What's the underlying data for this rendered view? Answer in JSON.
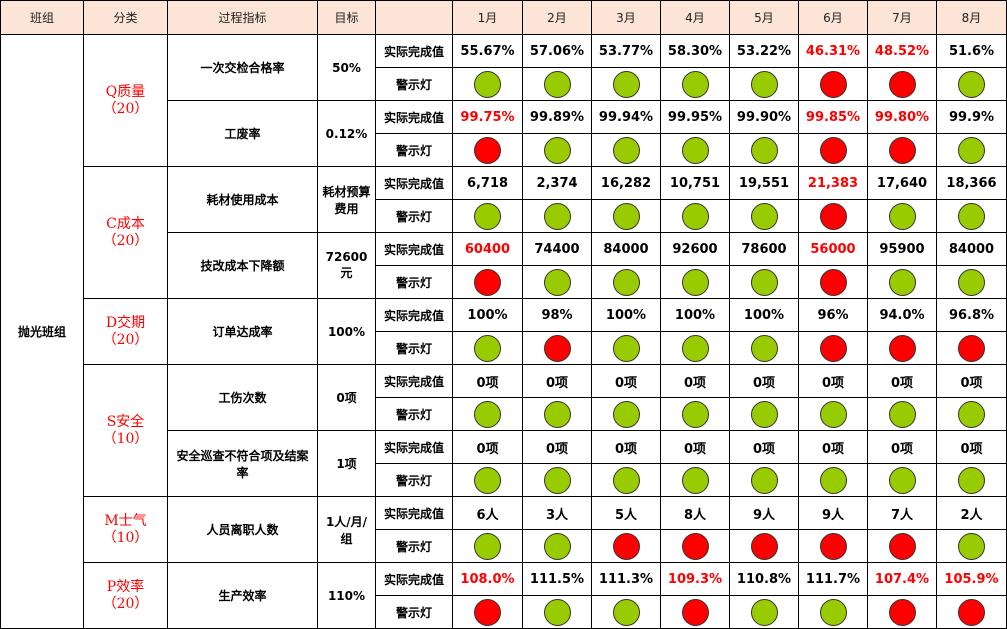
{
  "header": {
    "team": "班组",
    "category": "分类",
    "metric": "过程指标",
    "target": "目标",
    "blank": "",
    "months": [
      "1月",
      "2月",
      "3月",
      "4月",
      "5月",
      "6月",
      "7月",
      "8月"
    ]
  },
  "team": "抛光班组",
  "labels": {
    "actual": "实际完成值",
    "light": "警示灯"
  },
  "colors": {
    "green": "#99cc00",
    "red": "#ff0000",
    "header_bg": "#fce4d6"
  },
  "categories": [
    {
      "name": "Q质量",
      "weight": "（20）",
      "metrics": [
        {
          "name": "一次交检合格率",
          "target": "50%",
          "values": [
            "55.67%",
            "57.06%",
            "53.77%",
            "58.30%",
            "53.22%",
            "46.31%",
            "48.52%",
            "51.6%"
          ],
          "value_red": [
            false,
            false,
            false,
            false,
            false,
            true,
            true,
            false
          ],
          "lights": [
            "green",
            "green",
            "green",
            "green",
            "green",
            "red",
            "red",
            "green"
          ]
        },
        {
          "name": "工废率",
          "target": "0.12%",
          "values": [
            "99.75%",
            "99.89%",
            "99.94%",
            "99.95%",
            "99.90%",
            "99.85%",
            "99.80%",
            "99.9%"
          ],
          "value_red": [
            true,
            false,
            false,
            false,
            false,
            true,
            true,
            false
          ],
          "lights": [
            "red",
            "green",
            "green",
            "green",
            "green",
            "red",
            "red",
            "green"
          ]
        }
      ]
    },
    {
      "name": "C成本",
      "weight": "（20）",
      "metrics": [
        {
          "name": "耗材使用成本",
          "target": "耗材预算费用",
          "values": [
            "6,718",
            "2,374",
            "16,282",
            "10,751",
            "19,551",
            "21,383",
            "17,640",
            "18,366"
          ],
          "value_red": [
            false,
            false,
            false,
            false,
            false,
            true,
            false,
            false
          ],
          "lights": [
            "green",
            "green",
            "green",
            "green",
            "green",
            "red",
            "green",
            "green"
          ]
        },
        {
          "name": "技改成本下降额",
          "target": "72600元",
          "values": [
            "60400",
            "74400",
            "84000",
            "92600",
            "78600",
            "56000",
            "95900",
            "84000"
          ],
          "value_red": [
            true,
            false,
            false,
            false,
            false,
            true,
            false,
            false
          ],
          "lights": [
            "red",
            "green",
            "green",
            "green",
            "green",
            "red",
            "green",
            "green"
          ]
        }
      ]
    },
    {
      "name": "D交期",
      "weight": "（20）",
      "metrics": [
        {
          "name": "订单达成率",
          "target": "100%",
          "values": [
            "100%",
            "98%",
            "100%",
            "100%",
            "100%",
            "96%",
            "94.0%",
            "96.8%"
          ],
          "value_red": [
            false,
            false,
            false,
            false,
            false,
            false,
            false,
            false
          ],
          "lights": [
            "green",
            "red",
            "green",
            "green",
            "green",
            "red",
            "red",
            "red"
          ]
        }
      ]
    },
    {
      "name": "S安全",
      "weight": "（10）",
      "metrics": [
        {
          "name": "工伤次数",
          "target": "0项",
          "values": [
            "0项",
            "0项",
            "0项",
            "0项",
            "0项",
            "0项",
            "0项",
            "0项"
          ],
          "value_red": [
            false,
            false,
            false,
            false,
            false,
            false,
            false,
            false
          ],
          "lights": [
            "green",
            "green",
            "green",
            "green",
            "green",
            "green",
            "green",
            "green"
          ]
        },
        {
          "name": "安全巡查不符合项及结案率",
          "target": "1项",
          "values": [
            "0项",
            "0项",
            "0项",
            "0项",
            "0项",
            "0项",
            "0项",
            "0项"
          ],
          "value_red": [
            false,
            false,
            false,
            false,
            false,
            false,
            false,
            false
          ],
          "lights": [
            "green",
            "green",
            "green",
            "green",
            "green",
            "green",
            "green",
            "green"
          ]
        }
      ]
    },
    {
      "name": "M士气",
      "weight": "（10）",
      "metrics": [
        {
          "name": "人员离职人数",
          "target": "1人/月/组",
          "values": [
            "6人",
            "3人",
            "5人",
            "8人",
            "9人",
            "9人",
            "7人",
            "2人"
          ],
          "value_red": [
            false,
            false,
            false,
            false,
            false,
            false,
            false,
            false
          ],
          "lights": [
            "green",
            "green",
            "red",
            "red",
            "red",
            "red",
            "red",
            "green"
          ]
        }
      ]
    },
    {
      "name": "P效率",
      "weight": "（20）",
      "metrics": [
        {
          "name": "生产效率",
          "target": "110%",
          "values": [
            "108.0%",
            "111.5%",
            "111.3%",
            "109.3%",
            "110.8%",
            "111.7%",
            "107.4%",
            "105.9%"
          ],
          "value_red": [
            true,
            false,
            false,
            true,
            false,
            false,
            true,
            true
          ],
          "lights": [
            "red",
            "green",
            "green",
            "red",
            "green",
            "green",
            "red",
            "red"
          ]
        }
      ]
    }
  ]
}
